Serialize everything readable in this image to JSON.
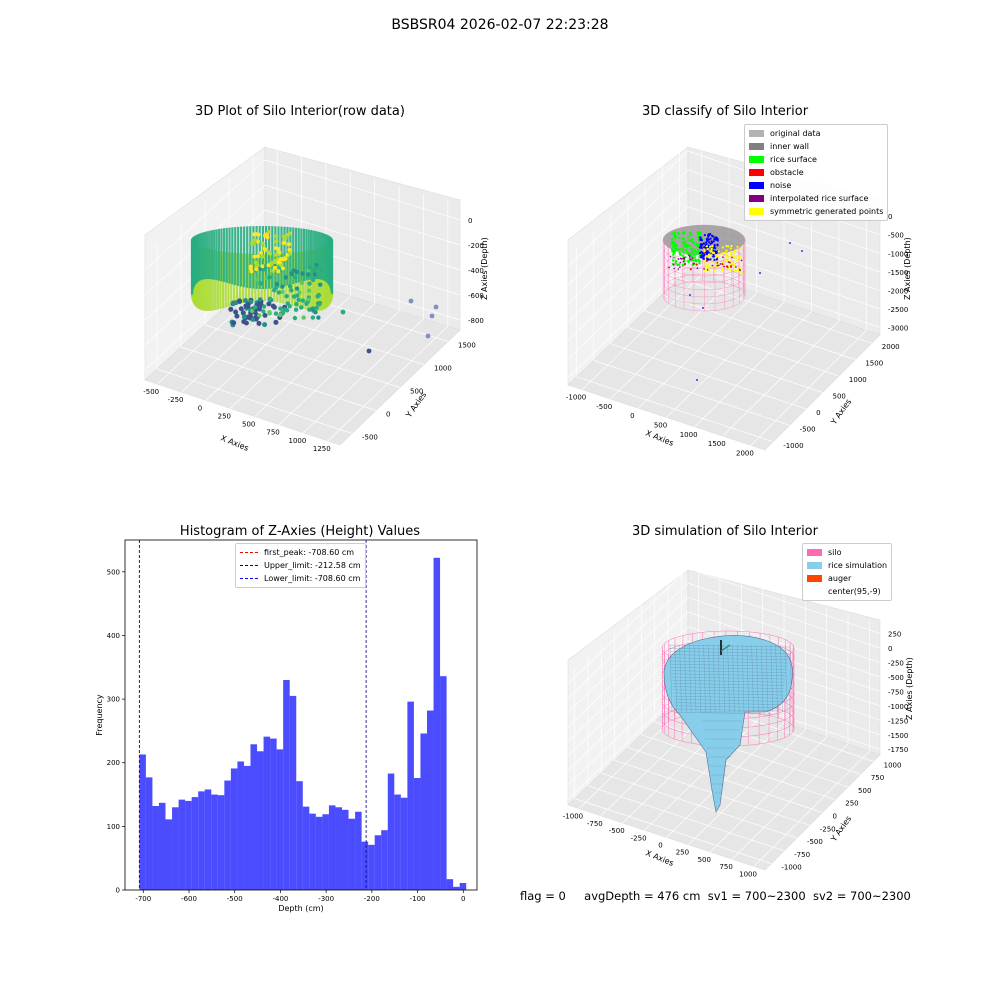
{
  "suptitle": "BSBSR04 2026-02-07 22:23:28",
  "footer": {
    "flag": "flag = 0",
    "avg_depth": "avgDepth = 476 cm",
    "sv1": "sv1 = 700~2300",
    "sv2": "sv2 = 700~2300"
  },
  "chart_data": [
    {
      "type": "scatter",
      "title": "3D Plot of Silo Interior(row data)",
      "xlabel": "X Axies",
      "ylabel": "Y Axies",
      "zlabel": "Z Axies (Depth)",
      "x_ticks": [
        "-500",
        "-250",
        "0",
        "250",
        "500",
        "750",
        "1000",
        "1250"
      ],
      "y_ticks": [
        "-500",
        "0",
        "500",
        "1000",
        "1500"
      ],
      "z_ticks": [
        "0",
        "-200",
        "-400",
        "-600",
        "-800"
      ],
      "colormap": "viridis",
      "grid": true
    },
    {
      "type": "scatter",
      "title": "3D classify of Silo Interior",
      "xlabel": "X Axies",
      "ylabel": "Y Axies",
      "zlabel": "Z Axies (Depth)",
      "x_ticks": [
        "-1000",
        "-500",
        "0",
        "500",
        "1000",
        "1500",
        "2000"
      ],
      "y_ticks": [
        "-1000",
        "-500",
        "0",
        "500",
        "1000",
        "1500",
        "2000"
      ],
      "z_ticks": [
        "0",
        "-500",
        "-1000",
        "-1500",
        "-2000",
        "-2500",
        "-3000"
      ],
      "legend_position": "top-right",
      "legend": [
        {
          "label": "original data",
          "color": "#b3b3b3"
        },
        {
          "label": "inner wall",
          "color": "#808080"
        },
        {
          "label": "rice surface",
          "color": "#00ff00"
        },
        {
          "label": "obstacle",
          "color": "#ff0000"
        },
        {
          "label": "noise",
          "color": "#0000ff"
        },
        {
          "label": "interpolated rice surface",
          "color": "#800080"
        },
        {
          "label": "symmetric generated points",
          "color": "#ffff00"
        }
      ],
      "grid": true
    },
    {
      "type": "bar",
      "title": "Histogram of Z-Axies (Height) Values",
      "xlabel": "Depth (cm)",
      "ylabel": "Frequency",
      "xlim": [
        -740,
        30
      ],
      "ylim": [
        0,
        550
      ],
      "x_ticks": [
        -700,
        -600,
        -500,
        -400,
        -300,
        -200,
        -100,
        0
      ],
      "y_ticks": [
        0,
        100,
        200,
        300,
        400,
        500
      ],
      "bin_start": -708.6,
      "bin_width": 14.3,
      "values": [
        213,
        177,
        132,
        137,
        111,
        130,
        142,
        140,
        146,
        155,
        158,
        150,
        149,
        172,
        191,
        202,
        195,
        229,
        218,
        241,
        238,
        221,
        330,
        305,
        171,
        131,
        120,
        115,
        119,
        133,
        130,
        126,
        112,
        123,
        76,
        71,
        86,
        94,
        183,
        150,
        145,
        296,
        176,
        246,
        282,
        522,
        336,
        17,
        5,
        11
      ],
      "color": "#0000ff",
      "lines": [
        {
          "label": "first_peak: -708.60 cm",
          "x": -708.6,
          "color": "#ff0000"
        },
        {
          "label": "Upper_limit: -212.58 cm",
          "x": -212.58,
          "color": "#00008b"
        },
        {
          "label": "Lower_limit: -708.60 cm",
          "x": -708.6,
          "color": "#0000ff"
        }
      ],
      "legend_position": "top-center",
      "grid": false
    },
    {
      "type": "surface",
      "title": "3D simulation of Silo Interior",
      "xlabel": "X Axies",
      "ylabel": "Y Axies",
      "zlabel": "Z Axies (Depth)",
      "x_ticks": [
        "-1000",
        "-750",
        "-500",
        "-250",
        "0",
        "250",
        "500",
        "750",
        "1000"
      ],
      "y_ticks": [
        "-1000",
        "-750",
        "-500",
        "-250",
        "0",
        "250",
        "500",
        "750",
        "1000"
      ],
      "z_ticks": [
        "250",
        "0",
        "-250",
        "-500",
        "-750",
        "-1000",
        "-1250",
        "-1500",
        "-1750"
      ],
      "legend_position": "top-right",
      "legend": [
        {
          "label": "silo",
          "color": "#ff69b4"
        },
        {
          "label": "rice simulation",
          "color": "#87ceeb"
        },
        {
          "label": "auger",
          "color": "#ff4500"
        },
        {
          "label": "center(95,-9)",
          "color": "#ffffff"
        }
      ],
      "grid": true
    }
  ]
}
